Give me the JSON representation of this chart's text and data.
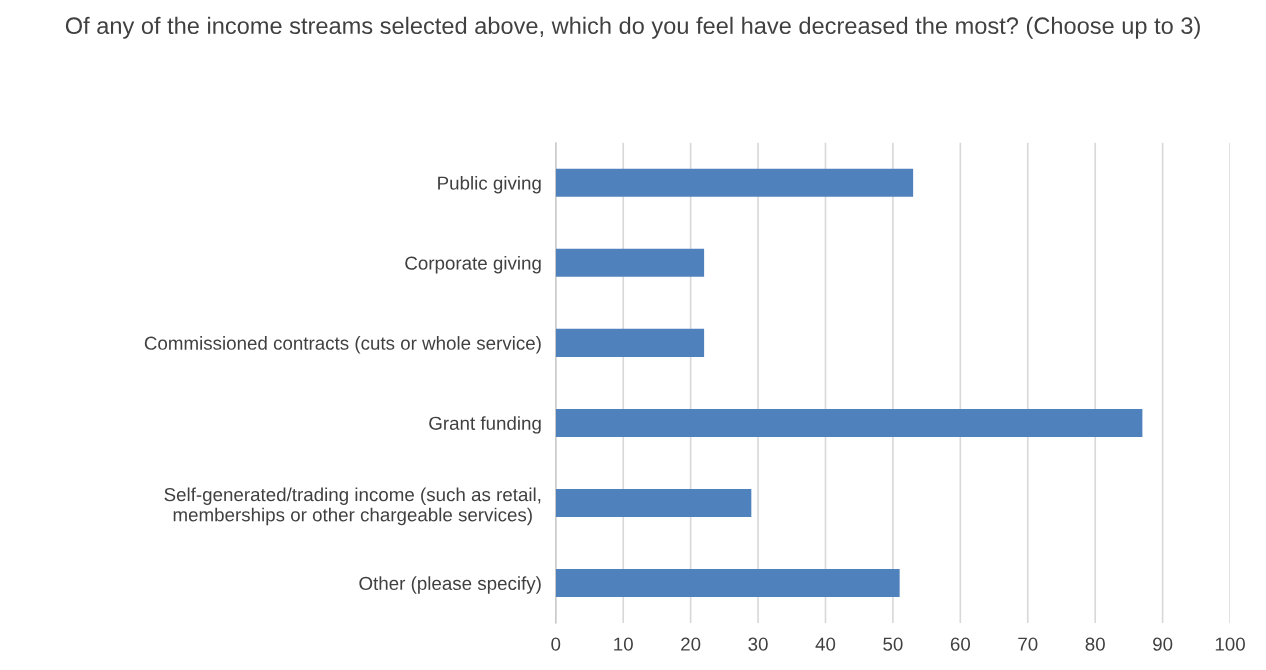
{
  "chart_data": {
    "type": "bar",
    "orientation": "horizontal",
    "title": "Of any of the income streams selected above, which do you feel have decreased the most? (Choose up to 3)",
    "categories": [
      "Public giving",
      "Corporate giving",
      "Commissioned contracts (cuts or whole service)",
      "Grant funding",
      "Self-generated/trading income (such as retail,\nmemberships or other chargeable services)",
      "Other (please specify)"
    ],
    "values": [
      53,
      22,
      22,
      87,
      29,
      51
    ],
    "color": "#4f81bd",
    "xlim": [
      0,
      100
    ],
    "xticks": [
      0,
      10,
      20,
      30,
      40,
      50,
      60,
      70,
      80,
      90,
      100
    ],
    "grid": "x",
    "legend": false
  }
}
